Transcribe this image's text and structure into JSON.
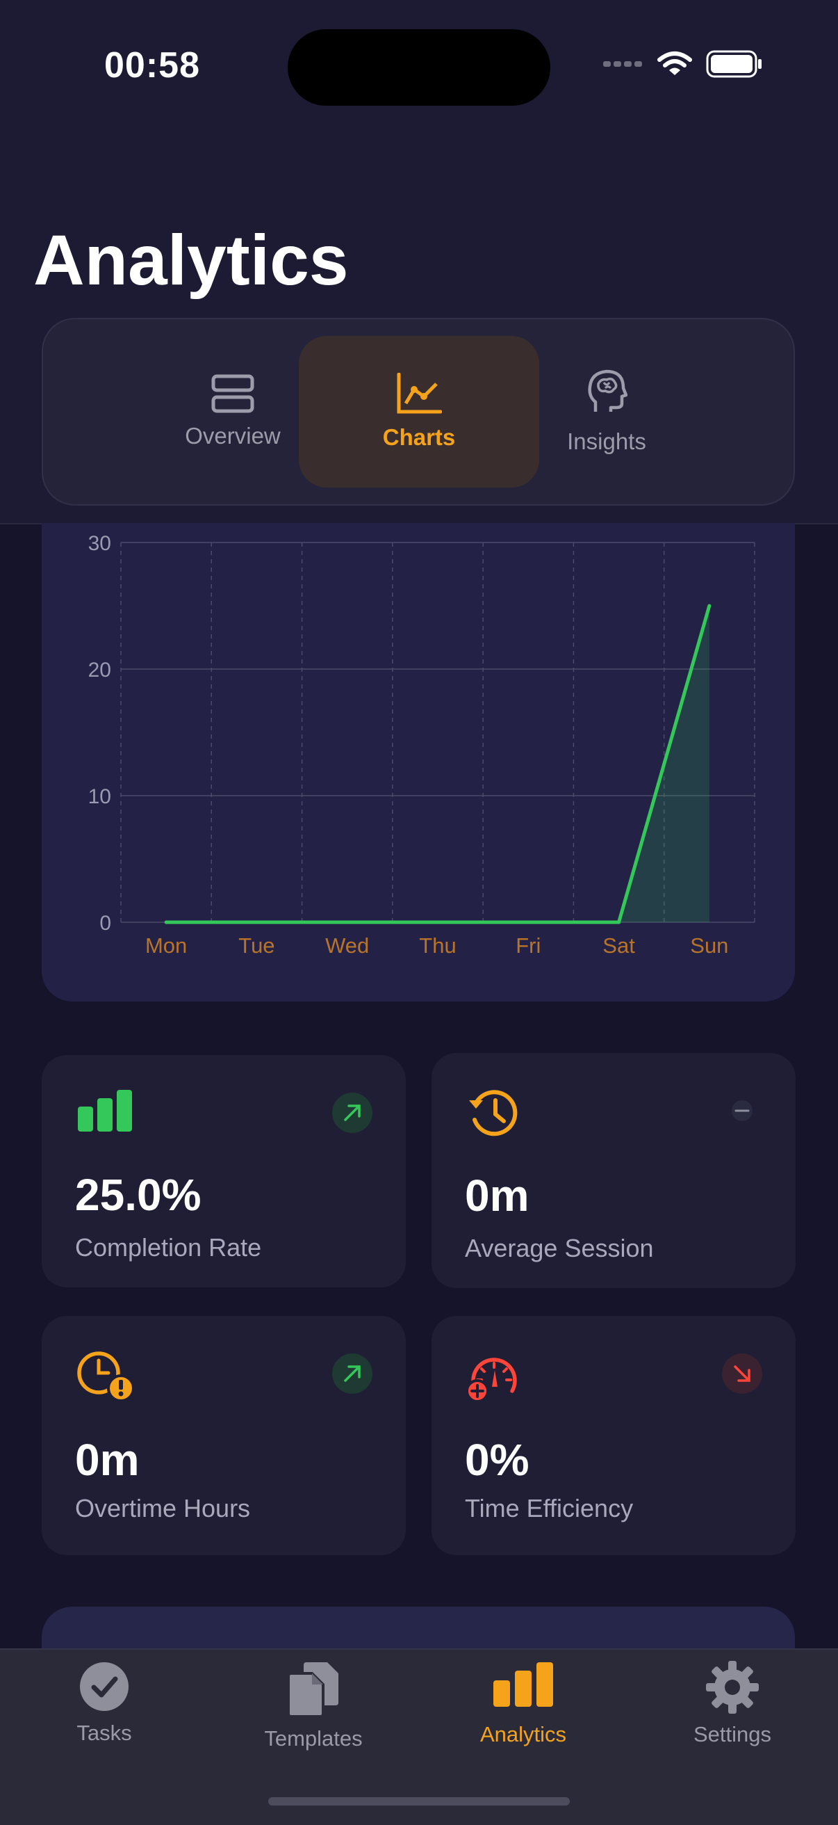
{
  "status": {
    "time": "00:58"
  },
  "page": {
    "title": "Analytics"
  },
  "segments": [
    {
      "label": "Overview",
      "icon": "stack-icon",
      "active": false
    },
    {
      "label": "Charts",
      "icon": "line-chart-icon",
      "active": true
    },
    {
      "label": "Insights",
      "icon": "brain-head-icon",
      "active": false
    }
  ],
  "chart_data": {
    "type": "area",
    "categories": [
      "Mon",
      "Tue",
      "Wed",
      "Thu",
      "Fri",
      "Sat",
      "Sun"
    ],
    "series": [
      {
        "values": [
          0,
          0,
          0,
          0,
          0,
          0,
          25
        ]
      }
    ],
    "yticks": [
      "30",
      "20",
      "10",
      "0"
    ],
    "ylim": [
      0,
      30
    ],
    "grid": true,
    "colors": {
      "line": "#34c759",
      "axis_labels": "#b8742a"
    }
  },
  "stats": [
    {
      "value": "25.0%",
      "label": "Completion Rate",
      "icon": "bar-chart-icon",
      "trend": "up"
    },
    {
      "value": "0m",
      "label": "Average Session",
      "icon": "history-clock-icon",
      "trend": "neutral"
    },
    {
      "value": "0m",
      "label": "Overtime Hours",
      "icon": "clock-warning-icon",
      "trend": "up"
    },
    {
      "value": "0%",
      "label": "Time Efficiency",
      "icon": "gauge-icon",
      "trend": "down"
    }
  ],
  "tabbar": [
    {
      "label": "Tasks",
      "icon": "checkmark-circle-icon",
      "active": false
    },
    {
      "label": "Templates",
      "icon": "documents-icon",
      "active": false
    },
    {
      "label": "Analytics",
      "icon": "bar-chart-icon",
      "active": true
    },
    {
      "label": "Settings",
      "icon": "gear-icon",
      "active": false
    }
  ],
  "colors": {
    "accent": "#f5a31a",
    "positive": "#34c759",
    "negative": "#ff453a",
    "background": "#15142a"
  }
}
